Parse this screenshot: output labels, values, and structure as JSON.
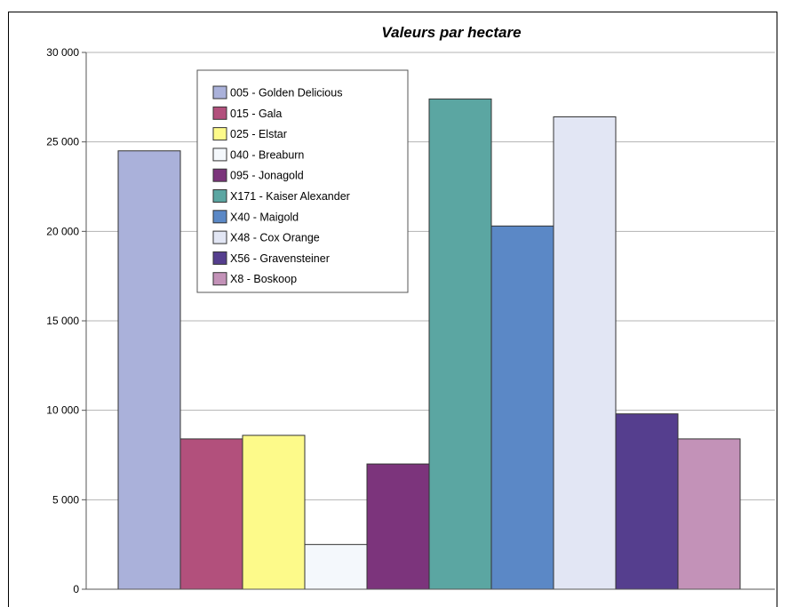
{
  "chart_data": {
    "type": "bar",
    "title": "Valeurs par hectare",
    "xlabel": "",
    "ylabel": "",
    "ylim": [
      0,
      30000
    ],
    "yticks": [
      0,
      5000,
      10000,
      15000,
      20000,
      25000,
      30000
    ],
    "ytick_labels": [
      "0",
      "5 000",
      "10 000",
      "15 000",
      "20 000",
      "25 000",
      "30 000"
    ],
    "grid": true,
    "legend_position": "top-left",
    "series": [
      {
        "name": "005 - Golden Delicious",
        "value": 24500,
        "color": "#aab1da"
      },
      {
        "name": "015 - Gala",
        "value": 8400,
        "color": "#b2507c"
      },
      {
        "name": "025 - Elstar",
        "value": 8600,
        "color": "#fdfa8a"
      },
      {
        "name": "040 - Breaburn",
        "value": 2500,
        "color": "#f4f8fc"
      },
      {
        "name": "095 - Jonagold",
        "value": 7000,
        "color": "#7c347c"
      },
      {
        "name": "X171 - Kaiser Alexander",
        "value": 27400,
        "color": "#5ba6a2"
      },
      {
        "name": "X40 - Maigold",
        "value": 20300,
        "color": "#5b88c6"
      },
      {
        "name": "X48 - Cox Orange",
        "value": 26400,
        "color": "#e2e6f4"
      },
      {
        "name": "X56 - Gravensteiner",
        "value": 9800,
        "color": "#553e8e"
      },
      {
        "name": "X8 - Boskoop",
        "value": 8400,
        "color": "#c392b8"
      }
    ]
  }
}
